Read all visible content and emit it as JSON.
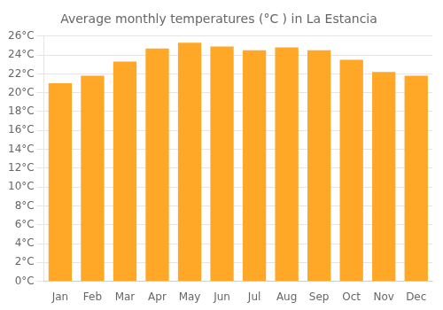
{
  "chart_data": {
    "type": "bar",
    "title": "Average monthly temperatures (°C ) in La Estancia",
    "categories": [
      "Jan",
      "Feb",
      "Mar",
      "Apr",
      "May",
      "Jun",
      "Jul",
      "Aug",
      "Sep",
      "Oct",
      "Nov",
      "Dec"
    ],
    "values": [
      21.0,
      21.8,
      23.3,
      24.7,
      25.3,
      24.9,
      24.5,
      24.8,
      24.5,
      23.5,
      22.2,
      21.8
    ],
    "color": "#FFA726",
    "ylim": [
      0,
      26
    ],
    "yticks": [
      {
        "value": 0,
        "label": "0°C"
      },
      {
        "value": 2,
        "label": "2°C"
      },
      {
        "value": 4,
        "label": "4°C"
      },
      {
        "value": 6,
        "label": "6°C"
      },
      {
        "value": 8,
        "label": "8°C"
      },
      {
        "value": 10,
        "label": "10°C"
      },
      {
        "value": 12,
        "label": "12°C"
      },
      {
        "value": 14,
        "label": "14°C"
      },
      {
        "value": 16,
        "label": "16°C"
      },
      {
        "value": 18,
        "label": "18°C"
      },
      {
        "value": 20,
        "label": "20°C"
      },
      {
        "value": 22,
        "label": "22°C"
      },
      {
        "value": 24,
        "label": "24°C"
      },
      {
        "value": 26,
        "label": "26°C"
      }
    ],
    "grid": true
  }
}
